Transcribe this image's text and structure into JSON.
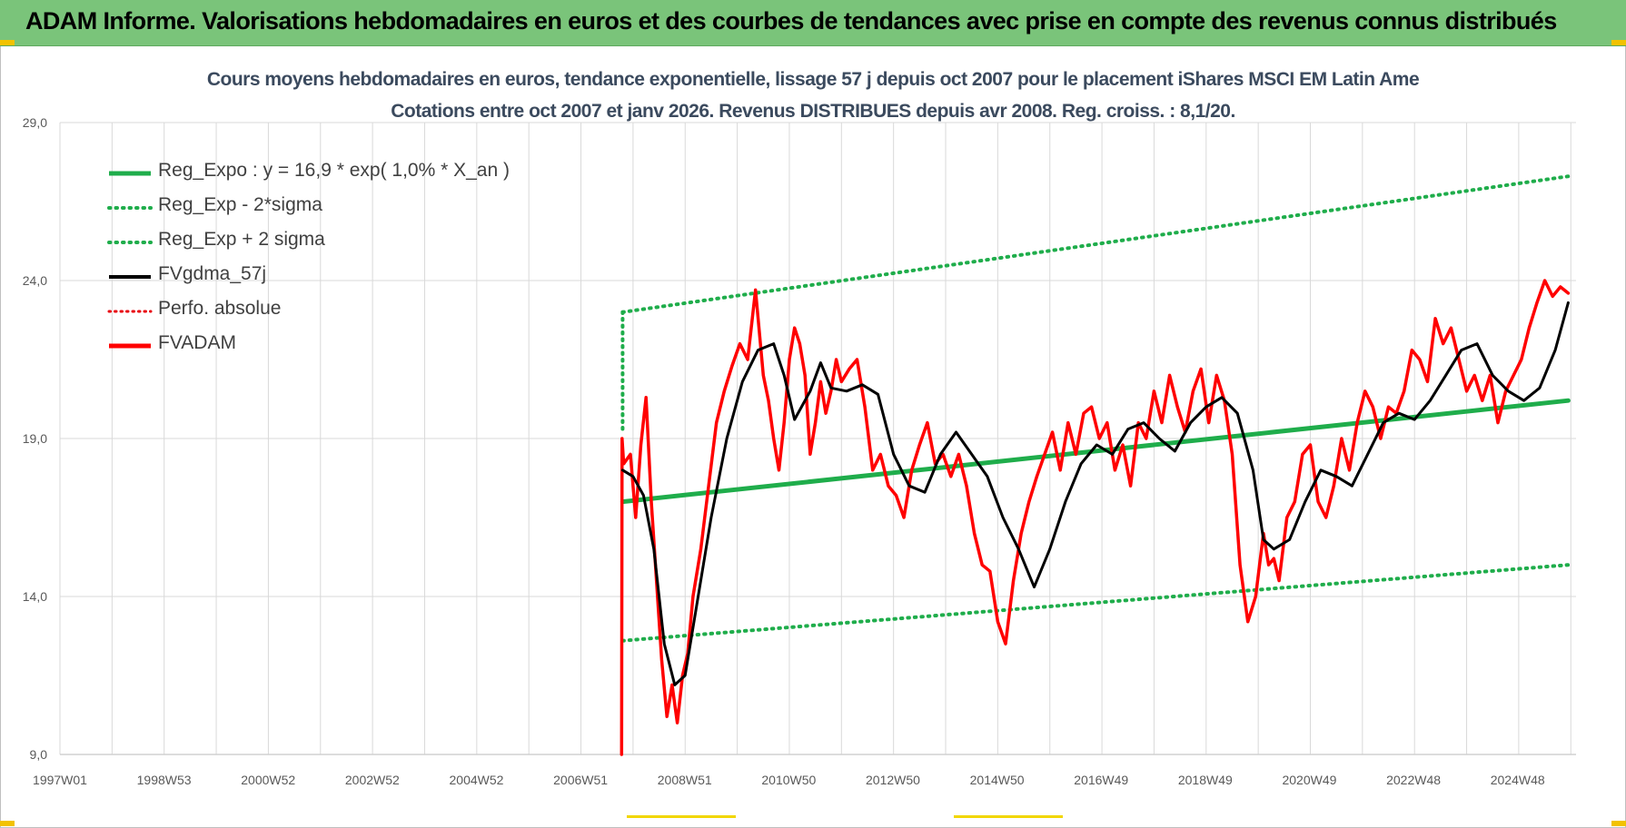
{
  "header": {
    "title": "ADAM Informe. Valorisations hebdomadaires en euros et des courbes de tendances avec prise en compte des revenus connus distribués"
  },
  "colors": {
    "header_bg": "#7ac47a",
    "reg_expo": "#1fad4b",
    "sigma": "#1fad4b",
    "fvgdma": "#000000",
    "perfo": "#e8000b",
    "fvadam": "#ff0000",
    "grid": "#d9d9d9",
    "title_text": "#3b4a5e"
  },
  "chart_data": {
    "type": "line",
    "title": "Cours moyens hebdomadaires en euros, tendance exponentielle, lissage 57 j depuis oct 2007 pour le placement iShares MSCI EM Latin Ame",
    "subtitle": "Cotations entre oct 2007 et janv 2026. Revenus DISTRIBUES depuis avr 2008. Reg. croiss. : 8,1/20.",
    "x_tick_labels": [
      "1997W01",
      "1998W53",
      "2000W52",
      "2002W52",
      "2004W52",
      "2006W51",
      "2008W51",
      "2010W50",
      "2012W50",
      "2014W50",
      "2016W49",
      "2018W49",
      "2020W49",
      "2022W48",
      "2024W48"
    ],
    "x_range": [
      1997.0,
      2026.1
    ],
    "y_tick_labels": [
      "9,0",
      "14,0",
      "19,0",
      "24,0",
      "29,0"
    ],
    "ylim": [
      9.0,
      29.0
    ],
    "grid": true,
    "legend_position": "top-left",
    "series": [
      {
        "name": "Reg_Expo : y = 16,9 * exp( 1,0% *  X_an )",
        "style": "solid-thick",
        "x": [
          2007.8,
          2025.95
        ],
        "y": [
          17.0,
          20.2
        ]
      },
      {
        "name": "Reg_Exp - 2*sigma",
        "style": "dotted",
        "x": [
          2007.8,
          2025.95
        ],
        "y": [
          12.6,
          15.0
        ]
      },
      {
        "name": "Reg_Exp + 2 sigma",
        "style": "dotted",
        "x": [
          2007.8,
          2025.95
        ],
        "y": [
          23.0,
          27.3
        ]
      },
      {
        "name": "FVgdma_57j",
        "style": "solid",
        "x": [
          2007.8,
          2008.0,
          2008.2,
          2008.4,
          2008.6,
          2008.8,
          2009.0,
          2009.2,
          2009.5,
          2009.8,
          2010.1,
          2010.4,
          2010.7,
          2010.9,
          2011.1,
          2011.4,
          2011.6,
          2011.8,
          2012.1,
          2012.4,
          2012.7,
          2013.0,
          2013.3,
          2013.6,
          2013.9,
          2014.2,
          2014.5,
          2014.8,
          2015.1,
          2015.4,
          2015.7,
          2016.0,
          2016.3,
          2016.6,
          2016.9,
          2017.2,
          2017.5,
          2017.8,
          2018.1,
          2018.4,
          2018.7,
          2019.0,
          2019.3,
          2019.6,
          2019.9,
          2020.1,
          2020.3,
          2020.6,
          2020.9,
          2021.2,
          2021.5,
          2021.8,
          2022.1,
          2022.4,
          2022.7,
          2023.0,
          2023.3,
          2023.6,
          2023.9,
          2024.2,
          2024.5,
          2024.8,
          2025.1,
          2025.4,
          2025.7,
          2025.95
        ],
        "y": [
          18.0,
          17.8,
          17.2,
          15.5,
          12.5,
          11.2,
          11.5,
          13.5,
          16.5,
          19.0,
          20.8,
          21.8,
          22.0,
          21.0,
          19.6,
          20.5,
          21.4,
          20.6,
          20.5,
          20.7,
          20.4,
          18.5,
          17.5,
          17.3,
          18.5,
          19.2,
          18.5,
          17.8,
          16.5,
          15.5,
          14.3,
          15.5,
          17.0,
          18.2,
          18.8,
          18.5,
          19.3,
          19.5,
          19.0,
          18.6,
          19.5,
          20.0,
          20.3,
          19.8,
          18.0,
          15.8,
          15.5,
          15.8,
          17.0,
          18.0,
          17.8,
          17.5,
          18.5,
          19.5,
          19.8,
          19.6,
          20.2,
          21.0,
          21.8,
          22.0,
          21.0,
          20.5,
          20.2,
          20.6,
          21.8,
          23.3
        ]
      },
      {
        "name": "Perfo. absolue",
        "style": "dotted",
        "x": [],
        "y": []
      },
      {
        "name": "FVADAM",
        "style": "solid-thick",
        "x": [
          2007.78,
          2007.79,
          2007.82,
          2007.95,
          2008.05,
          2008.15,
          2008.25,
          2008.35,
          2008.45,
          2008.55,
          2008.65,
          2008.75,
          2008.85,
          2008.95,
          2009.05,
          2009.15,
          2009.3,
          2009.45,
          2009.6,
          2009.75,
          2009.9,
          2010.05,
          2010.2,
          2010.35,
          2010.5,
          2010.6,
          2010.7,
          2010.8,
          2010.9,
          2011.0,
          2011.1,
          2011.2,
          2011.3,
          2011.4,
          2011.5,
          2011.6,
          2011.7,
          2011.8,
          2011.9,
          2012.0,
          2012.15,
          2012.3,
          2012.45,
          2012.6,
          2012.75,
          2012.9,
          2013.05,
          2013.2,
          2013.35,
          2013.5,
          2013.65,
          2013.8,
          2013.95,
          2014.1,
          2014.25,
          2014.4,
          2014.55,
          2014.7,
          2014.85,
          2015.0,
          2015.15,
          2015.3,
          2015.45,
          2015.6,
          2015.75,
          2015.9,
          2016.05,
          2016.2,
          2016.35,
          2016.5,
          2016.65,
          2016.8,
          2016.95,
          2017.1,
          2017.25,
          2017.4,
          2017.55,
          2017.7,
          2017.85,
          2018.0,
          2018.15,
          2018.3,
          2018.45,
          2018.6,
          2018.75,
          2018.9,
          2019.05,
          2019.2,
          2019.35,
          2019.5,
          2019.65,
          2019.8,
          2019.95,
          2020.1,
          2020.2,
          2020.3,
          2020.4,
          2020.55,
          2020.7,
          2020.85,
          2021.0,
          2021.15,
          2021.3,
          2021.45,
          2021.6,
          2021.75,
          2021.9,
          2022.05,
          2022.2,
          2022.35,
          2022.5,
          2022.65,
          2022.8,
          2022.95,
          2023.1,
          2023.25,
          2023.4,
          2023.55,
          2023.7,
          2023.85,
          2024.0,
          2024.15,
          2024.3,
          2024.45,
          2024.6,
          2024.75,
          2024.9,
          2025.05,
          2025.2,
          2025.35,
          2025.5,
          2025.65,
          2025.8,
          2025.95
        ],
        "y": [
          9.0,
          19.0,
          18.2,
          18.5,
          16.5,
          18.8,
          20.3,
          17.0,
          14.5,
          12.0,
          10.2,
          11.2,
          10.0,
          11.5,
          12.2,
          14.0,
          15.5,
          17.5,
          19.5,
          20.5,
          21.3,
          22.0,
          21.5,
          23.7,
          21.0,
          20.2,
          19.0,
          18.0,
          19.5,
          21.5,
          22.5,
          22.0,
          21.0,
          18.5,
          19.5,
          20.8,
          19.8,
          20.5,
          21.5,
          20.8,
          21.2,
          21.5,
          20.0,
          18.0,
          18.5,
          17.5,
          17.2,
          16.5,
          18.0,
          18.8,
          19.5,
          18.2,
          18.5,
          17.8,
          18.5,
          17.5,
          16.0,
          15.0,
          14.8,
          13.2,
          12.5,
          14.5,
          16.0,
          17.0,
          17.8,
          18.5,
          19.2,
          18.0,
          19.5,
          18.5,
          19.8,
          20.0,
          19.0,
          19.5,
          18.0,
          18.8,
          17.5,
          19.5,
          19.0,
          20.5,
          19.5,
          21.0,
          20.0,
          19.2,
          20.5,
          21.2,
          19.5,
          21.0,
          20.2,
          18.5,
          15.0,
          13.2,
          14.0,
          16.0,
          15.0,
          15.2,
          14.5,
          16.5,
          17.0,
          18.5,
          18.8,
          17.0,
          16.5,
          17.5,
          19.0,
          18.0,
          19.5,
          20.5,
          20.0,
          19.0,
          20.0,
          19.8,
          20.5,
          21.8,
          21.5,
          20.8,
          22.8,
          22.0,
          22.5,
          21.5,
          20.5,
          21.0,
          20.2,
          21.0,
          19.5,
          20.5,
          21.0,
          21.5,
          22.5,
          23.3,
          24.0,
          23.5,
          23.8,
          23.6
        ]
      }
    ]
  }
}
